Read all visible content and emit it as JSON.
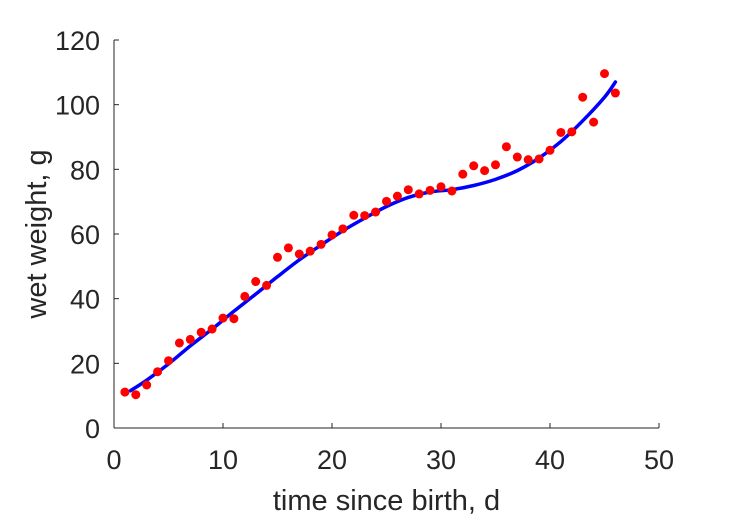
{
  "chart_data": {
    "type": "scatter",
    "title": "",
    "xlabel": "time since birth, d",
    "ylabel": "wet weight, g",
    "xlim": [
      0,
      50
    ],
    "ylim": [
      0,
      120
    ],
    "xticks": [
      0,
      10,
      20,
      30,
      40,
      50
    ],
    "yticks": [
      0,
      20,
      40,
      60,
      80,
      100,
      120
    ],
    "grid": false,
    "legend": "none",
    "colors": {
      "points": "#ff0000",
      "fit": "#0000ff",
      "axes": "#262626"
    },
    "series": [
      {
        "kind": "points",
        "x": [
          1,
          2,
          3,
          4,
          5,
          6,
          7,
          8,
          9,
          10,
          11,
          12,
          13,
          14,
          15,
          16,
          17,
          18,
          19,
          20,
          21,
          22,
          23,
          24,
          25,
          26,
          27,
          28,
          29,
          30,
          31,
          32,
          33,
          34,
          35,
          36,
          37,
          38,
          39,
          40,
          41,
          42,
          43,
          44,
          45,
          46
        ],
        "y": [
          11.1,
          10.3,
          13.3,
          17.4,
          20.8,
          26.3,
          27.4,
          29.6,
          30.6,
          34.0,
          33.8,
          40.7,
          45.3,
          44.1,
          52.8,
          55.7,
          53.8,
          54.7,
          56.8,
          59.7,
          61.6,
          65.8,
          65.7,
          66.8,
          70.1,
          71.7,
          73.7,
          72.4,
          73.5,
          74.6,
          73.3,
          78.5,
          81.1,
          79.6,
          81.4,
          87.0,
          83.8,
          83.0,
          83.2,
          85.9,
          91.4,
          91.6,
          102.3,
          94.6,
          109.6,
          103.6
        ]
      },
      {
        "kind": "fit",
        "x": [
          1.5,
          3,
          5,
          7,
          9,
          11,
          13,
          15,
          17,
          19,
          21,
          23,
          25,
          27,
          29,
          31,
          33,
          35,
          37,
          39,
          41,
          43,
          45,
          46
        ],
        "y": [
          11.5,
          14.8,
          19.8,
          25.4,
          30.6,
          36.1,
          41.4,
          46.8,
          52.0,
          56.6,
          61.0,
          64.9,
          68.5,
          71.3,
          73.0,
          73.7,
          75.0,
          76.9,
          79.6,
          83.5,
          88.6,
          95.0,
          102.3,
          107.0
        ]
      }
    ]
  }
}
